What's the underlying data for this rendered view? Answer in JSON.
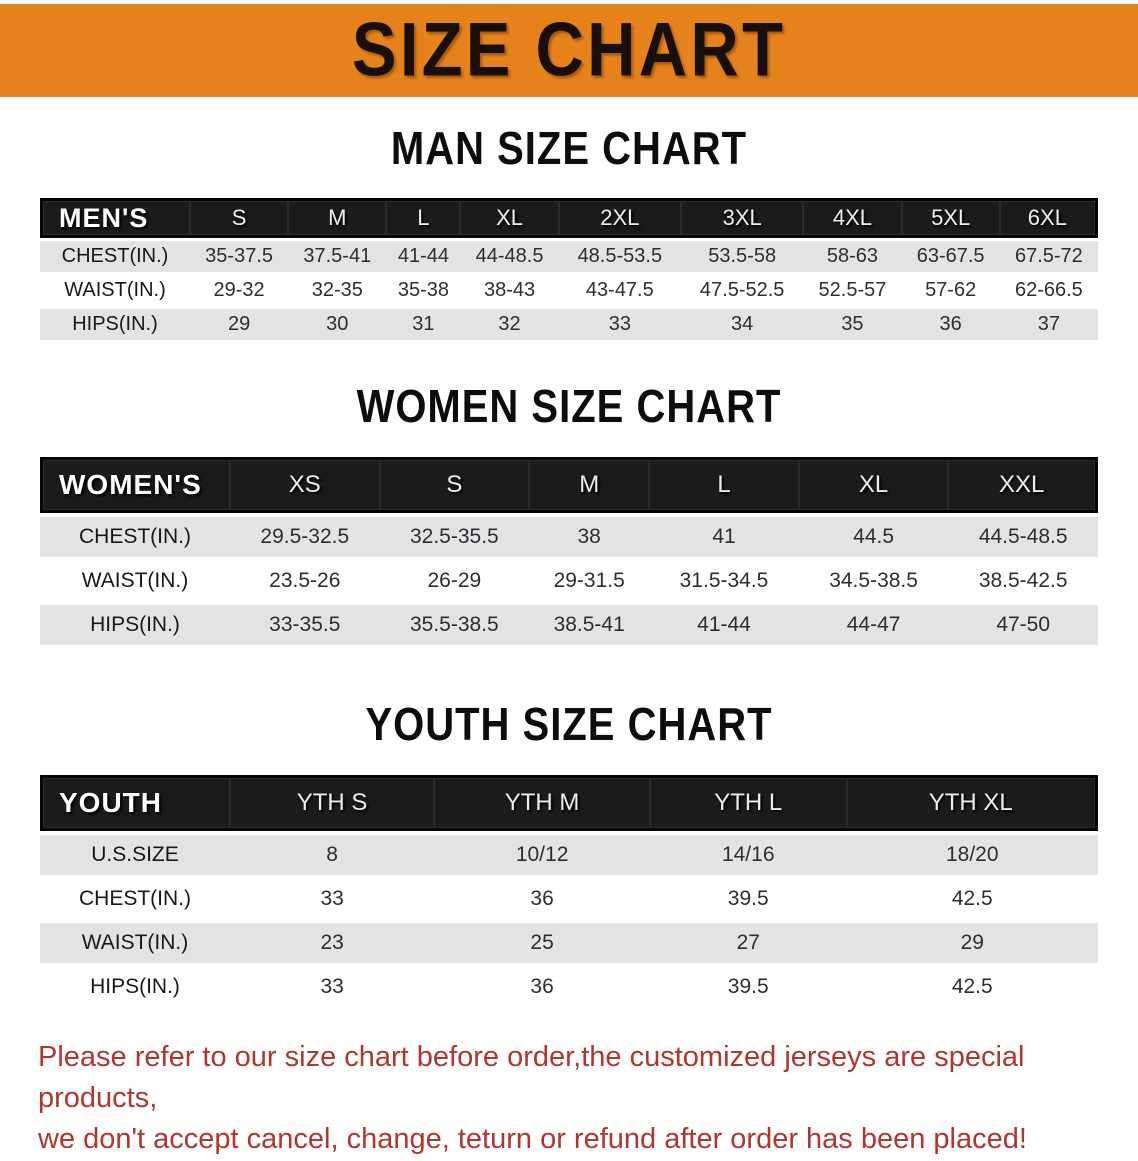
{
  "colors": {
    "banner-bg": "#E6821B",
    "header-bg": "#1B1B1B",
    "stripe": "#E3E3E4",
    "value-ink": "#2B2E33",
    "label-ink": "#17181A",
    "disclaimer": "#B1362E"
  },
  "banner": {
    "title": "SIZE CHART"
  },
  "sections": [
    {
      "title": "MAN SIZE CHART",
      "header_label": "MEN'S",
      "columns": [
        "S",
        "M",
        "L",
        "XL",
        "2XL",
        "3XL",
        "4XL",
        "5XL",
        "6XL"
      ],
      "rows": [
        {
          "label": "CHEST(IN.)",
          "values": [
            "35-37.5",
            "37.5-41",
            "41-44",
            "44-48.5",
            "48.5-53.5",
            "53.5-58",
            "58-63",
            "63-67.5",
            "67.5-72"
          ]
        },
        {
          "label": "WAIST(IN.)",
          "values": [
            "29-32",
            "32-35",
            "35-38",
            "38-43",
            "43-47.5",
            "47.5-52.5",
            "52.5-57",
            "57-62",
            "62-66.5"
          ]
        },
        {
          "label": "HIPS(IN.)",
          "values": [
            "29",
            "30",
            "31",
            "32",
            "33",
            "34",
            "35",
            "36",
            "37"
          ]
        }
      ]
    },
    {
      "title": "WOMEN SIZE CHART",
      "header_label": "WOMEN'S",
      "columns": [
        "XS",
        "S",
        "M",
        "L",
        "XL",
        "XXL"
      ],
      "rows": [
        {
          "label": "CHEST(IN.)",
          "values": [
            "29.5-32.5",
            "32.5-35.5",
            "38",
            "41",
            "44.5",
            "44.5-48.5"
          ]
        },
        {
          "label": "WAIST(IN.)",
          "values": [
            "23.5-26",
            "26-29",
            "29-31.5",
            "31.5-34.5",
            "34.5-38.5",
            "38.5-42.5"
          ]
        },
        {
          "label": "HIPS(IN.)",
          "values": [
            "33-35.5",
            "35.5-38.5",
            "38.5-41",
            "41-44",
            "44-47",
            "47-50"
          ]
        }
      ]
    },
    {
      "title": "YOUTH SIZE CHART",
      "header_label": "YOUTH",
      "columns": [
        "YTH S",
        "YTH M",
        "YTH L",
        "YTH XL"
      ],
      "rows": [
        {
          "label": "U.S.SIZE",
          "values": [
            "8",
            "10/12",
            "14/16",
            "18/20"
          ]
        },
        {
          "label": "CHEST(IN.)",
          "values": [
            "33",
            "36",
            "39.5",
            "42.5"
          ]
        },
        {
          "label": "WAIST(IN.)",
          "values": [
            "23",
            "25",
            "27",
            "29"
          ]
        },
        {
          "label": "HIPS(IN.)",
          "values": [
            "33",
            "36",
            "39.5",
            "42.5"
          ]
        }
      ]
    }
  ],
  "disclaimer": {
    "line1": "Please refer to our size chart before order,the customized jerseys are special products,",
    "line2": "we don't accept cancel, change, teturn or refund after order has been placed!"
  }
}
